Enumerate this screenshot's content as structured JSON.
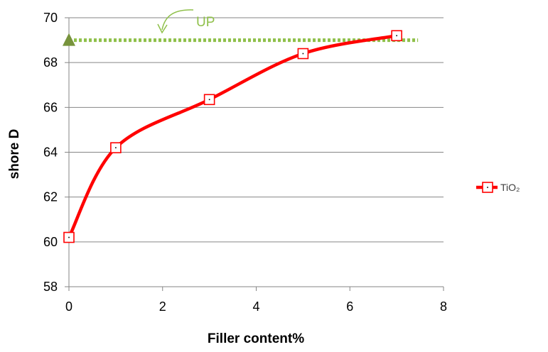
{
  "chart_data": {
    "type": "line",
    "title": "",
    "xlabel": "Filler content%",
    "ylabel": "shore D",
    "xlim": [
      0,
      8
    ],
    "ylim": [
      58,
      70
    ],
    "xticks": [
      0,
      2,
      4,
      6,
      8
    ],
    "yticks": [
      58,
      60,
      62,
      64,
      66,
      68,
      70
    ],
    "grid": "horizontal",
    "legend_position": "right",
    "series": [
      {
        "name": "TiO₂",
        "color": "#ff0000",
        "marker": "open-square",
        "smooth": true,
        "x": [
          0,
          1,
          3,
          5,
          7
        ],
        "y": [
          60.2,
          64.2,
          66.35,
          68.4,
          69.2
        ]
      }
    ],
    "reference": {
      "label": "UP",
      "value": 69.0,
      "x_range": [
        0,
        7
      ],
      "color": "#8fc04a",
      "style": "dotted",
      "marker": "triangle"
    }
  }
}
